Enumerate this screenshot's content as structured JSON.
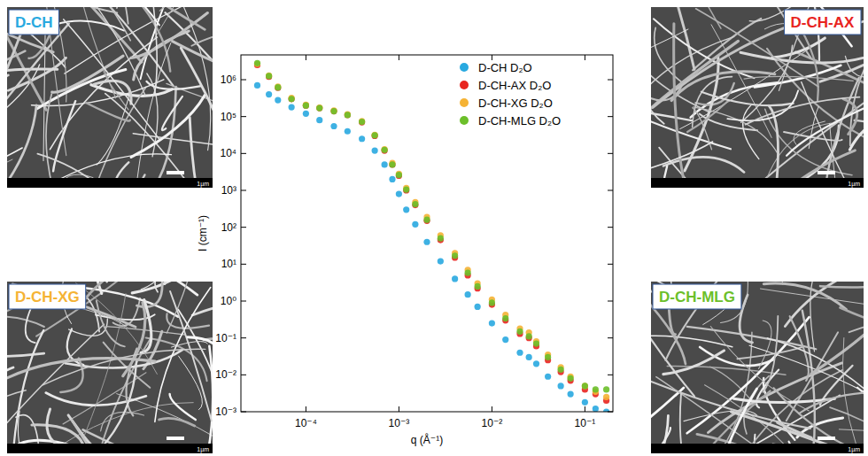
{
  "chart_data": {
    "type": "scatter",
    "x_label": "q (Å⁻¹)",
    "y_label": "I (cm⁻¹)",
    "log": true,
    "grid": false,
    "legend": "top-right",
    "marker": "circle",
    "xlim": [
      2e-05,
      0.2
    ],
    "ylim": [
      0.001,
      4700000
    ],
    "xticks": [
      {
        "value": 0.0001,
        "label": "10⁻⁴"
      },
      {
        "value": 0.001,
        "label": "10⁻³"
      },
      {
        "value": 0.01,
        "label": "10⁻²"
      },
      {
        "value": 0.1,
        "label": "10⁻¹"
      }
    ],
    "yticks": [
      {
        "value": 0.001,
        "label": "10⁻³"
      },
      {
        "value": 0.01,
        "label": "10⁻²"
      },
      {
        "value": 0.1,
        "label": "10⁻¹"
      },
      {
        "value": 1,
        "label": "10⁰"
      },
      {
        "value": 10,
        "label": "10¹"
      },
      {
        "value": 100,
        "label": "10²"
      },
      {
        "value": 1000,
        "label": "10³"
      },
      {
        "value": 10000,
        "label": "10⁴"
      },
      {
        "value": 100000,
        "label": "10⁵"
      },
      {
        "value": 1000000,
        "label": "10⁶"
      }
    ],
    "x": [
      3e-05,
      4e-05,
      5e-05,
      7e-05,
      0.0001,
      0.00014,
      0.0002,
      0.00028,
      0.0004,
      0.00055,
      0.0007,
      0.00085,
      0.001,
      0.0012,
      0.0015,
      0.002,
      0.0028,
      0.004,
      0.0055,
      0.007,
      0.01,
      0.014,
      0.02,
      0.025,
      0.03,
      0.04,
      0.055,
      0.07,
      0.1,
      0.13,
      0.17
    ],
    "series": [
      {
        "name": "D-CH D₂O",
        "color": "#29a9e0",
        "values": [
          700000,
          400000,
          280000,
          180000,
          120000,
          80000,
          55000,
          40000,
          25000,
          12000,
          5000,
          2000,
          800,
          300,
          120,
          40,
          12,
          4,
          1.5,
          0.7,
          0.25,
          0.09,
          0.04,
          0.03,
          0.02,
          0.009,
          0.005,
          0.003,
          0.0018,
          0.0012,
          0.001
        ]
      },
      {
        "name": "D-CH-AX D₂O",
        "color": "#e8251f",
        "values": [
          2500000,
          1200000,
          600000,
          300000,
          200000,
          170000,
          140000,
          110000,
          70000,
          30000,
          12000,
          5000,
          2500,
          1000,
          400,
          150,
          45,
          15,
          5,
          2.2,
          0.8,
          0.3,
          0.13,
          0.1,
          0.06,
          0.025,
          0.012,
          0.007,
          0.004,
          0.003,
          0.002
        ]
      },
      {
        "name": "D-CH-XG D₂O",
        "color": "#f5b335",
        "values": [
          2700000,
          1300000,
          650000,
          320000,
          210000,
          175000,
          145000,
          115000,
          75000,
          32000,
          13000,
          5500,
          2800,
          1150,
          480,
          190,
          60,
          20,
          7,
          3,
          1.1,
          0.42,
          0.18,
          0.14,
          0.08,
          0.035,
          0.016,
          0.009,
          0.005,
          0.0035,
          0.0025
        ]
      },
      {
        "name": "D-CH-MLG D₂O",
        "color": "#6cbf2a",
        "values": [
          2800000,
          1250000,
          620000,
          300000,
          200000,
          170000,
          140000,
          110000,
          72000,
          31000,
          12500,
          5000,
          2600,
          1050,
          420,
          160,
          50,
          17,
          5.8,
          2.5,
          0.9,
          0.34,
          0.15,
          0.11,
          0.07,
          0.03,
          0.014,
          0.008,
          0.005,
          0.004,
          0.004
        ]
      }
    ]
  },
  "images": [
    {
      "label": "D-CH",
      "color": "#29a9e0",
      "scale_bar": "1µm"
    },
    {
      "label": "D-CH-AX",
      "color": "#e8251f",
      "scale_bar": "1µm"
    },
    {
      "label": "D-CH-XG",
      "color": "#f5b335",
      "scale_bar": "1µm"
    },
    {
      "label": "D-CH-MLG",
      "color": "#6cbf2a",
      "scale_bar": "1µm"
    }
  ]
}
